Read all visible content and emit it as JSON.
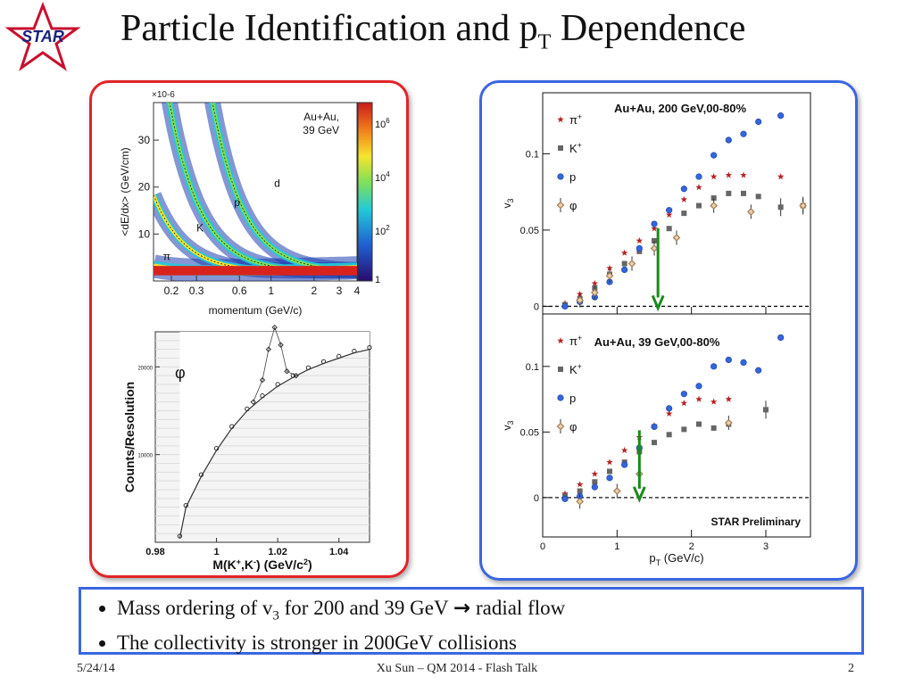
{
  "slide": {
    "title_main": "Particle Identification and p",
    "title_sub": "T",
    "title_end": " Dependence",
    "logo_text": "STAR",
    "bullets": [
      {
        "pre": "Mass ordering of v",
        "sub": "3",
        "post": " for 200 and 39 GeV ",
        "arrow": "→",
        "post2": " radial flow"
      },
      {
        "pre": "The collectivity is stronger in 200GeV collisions"
      }
    ],
    "footer": {
      "date": "5/24/14",
      "center": "Xu Sun – QM 2014 - Flash Talk",
      "page": "2"
    }
  },
  "colors": {
    "red_frame": "#e0242a",
    "blue_frame": "#3b66e0",
    "pion": "#b22222",
    "kaon": "#666666",
    "proton": "#3366dd",
    "phi": "#a67c52",
    "arrow": "#1a8a1a"
  },
  "chart_data": [
    {
      "type": "heatmap",
      "title": "",
      "annotation": "Au+Au,\n39 GeV",
      "xlabel": "momentum (GeV/c)",
      "ylabel": "<dE/dx> (GeV/cm)",
      "y_multiplier": "×10-6",
      "xticks": [
        "0.2",
        "0.3",
        "0.6",
        "1",
        "2",
        "3",
        "4"
      ],
      "yticks": [
        "10",
        "20",
        "30"
      ],
      "colorbar_ticks": [
        "1",
        "10^2",
        "10^4",
        "10^6"
      ],
      "band_labels": [
        "π",
        "K",
        "p",
        "d"
      ],
      "x_scale": "log",
      "xlim": [
        0.15,
        4
      ],
      "ylim": [
        0,
        38
      ]
    },
    {
      "type": "scatter",
      "title": "",
      "annotation": "φ",
      "xlabel": "M(K+,K-) (GeV/c2)",
      "ylabel": "Counts/Resolution",
      "xlim": [
        0.98,
        1.05
      ],
      "ylim": [
        0,
        24000
      ],
      "xticks": [
        "0.98",
        "1",
        "1.02",
        "1.04"
      ],
      "yticks": [
        "10000",
        "20000"
      ],
      "peak": {
        "x": 1.019,
        "y": 24500
      },
      "background_points": [
        [
          0.988,
          500
        ],
        [
          0.99,
          4000
        ],
        [
          0.995,
          7500
        ],
        [
          1.0,
          10500
        ],
        [
          1.005,
          13000
        ],
        [
          1.01,
          15000
        ],
        [
          1.015,
          16500
        ],
        [
          1.02,
          17800
        ],
        [
          1.025,
          18800
        ],
        [
          1.03,
          19700
        ],
        [
          1.035,
          20400
        ],
        [
          1.04,
          21000
        ],
        [
          1.045,
          21600
        ],
        [
          1.05,
          22000
        ]
      ],
      "signal_points": [
        [
          1.012,
          16000
        ],
        [
          1.015,
          18500
        ],
        [
          1.017,
          22000
        ],
        [
          1.019,
          24500
        ],
        [
          1.021,
          22500
        ],
        [
          1.023,
          19500
        ],
        [
          1.026,
          19000
        ]
      ]
    },
    {
      "type": "scatter",
      "title": "Au+Au, 200 GeV,00-80%",
      "xlabel": "",
      "ylabel": "v3",
      "xlim": [
        0,
        3.6
      ],
      "ylim": [
        -0.005,
        0.14
      ],
      "yticks": [
        "0",
        "0.05",
        "0.1"
      ],
      "arrow_x": 1.55,
      "series": [
        {
          "name": "π+",
          "points": [
            [
              0.3,
              0.002
            ],
            [
              0.5,
              0.008
            ],
            [
              0.7,
              0.015
            ],
            [
              0.9,
              0.025
            ],
            [
              1.1,
              0.035
            ],
            [
              1.3,
              0.043
            ],
            [
              1.5,
              0.051
            ],
            [
              1.7,
              0.06
            ],
            [
              1.9,
              0.07
            ],
            [
              2.1,
              0.078
            ],
            [
              2.3,
              0.085
            ],
            [
              2.5,
              0.086
            ],
            [
              2.7,
              0.086
            ],
            [
              3.2,
              0.085
            ]
          ]
        },
        {
          "name": "K+",
          "points": [
            [
              0.3,
              0.001
            ],
            [
              0.5,
              0.005
            ],
            [
              0.7,
              0.012
            ],
            [
              0.9,
              0.021
            ],
            [
              1.1,
              0.028
            ],
            [
              1.3,
              0.036
            ],
            [
              1.5,
              0.043
            ],
            [
              1.7,
              0.051
            ],
            [
              1.9,
              0.061
            ],
            [
              2.1,
              0.066
            ],
            [
              2.3,
              0.071
            ],
            [
              2.5,
              0.074
            ],
            [
              2.7,
              0.074
            ],
            [
              2.9,
              0.072
            ],
            [
              3.2,
              0.065
            ],
            [
              3.5,
              0.066
            ]
          ]
        },
        {
          "name": "p",
          "points": [
            [
              0.3,
              0.0
            ],
            [
              0.5,
              0.003
            ],
            [
              0.7,
              0.006
            ],
            [
              0.9,
              0.016
            ],
            [
              1.1,
              0.024
            ],
            [
              1.3,
              0.038
            ],
            [
              1.5,
              0.054
            ],
            [
              1.7,
              0.063
            ],
            [
              1.9,
              0.077
            ],
            [
              2.1,
              0.085
            ],
            [
              2.3,
              0.099
            ],
            [
              2.5,
              0.109
            ],
            [
              2.7,
              0.113
            ],
            [
              2.9,
              0.121
            ],
            [
              3.2,
              0.125
            ]
          ]
        },
        {
          "name": "φ",
          "points": [
            [
              0.5,
              0.004
            ],
            [
              0.7,
              0.009
            ],
            [
              0.9,
              0.02
            ],
            [
              1.2,
              0.028
            ],
            [
              1.5,
              0.038
            ],
            [
              1.8,
              0.045
            ],
            [
              2.3,
              0.066
            ],
            [
              2.8,
              0.062
            ],
            [
              3.5,
              0.066
            ]
          ]
        }
      ]
    },
    {
      "type": "scatter",
      "title": "Au+Au, 39 GeV,00-80%",
      "annotation": "STAR Preliminary",
      "xlabel": "pT (GeV/c)",
      "ylabel": "v3",
      "xlim": [
        0,
        3.6
      ],
      "ylim": [
        -0.03,
        0.14
      ],
      "xticks": [
        "0",
        "1",
        "2",
        "3"
      ],
      "yticks": [
        "0",
        "0.05",
        "0.1"
      ],
      "arrow_x": 1.3,
      "series": [
        {
          "name": "π+",
          "points": [
            [
              0.3,
              0.003
            ],
            [
              0.5,
              0.01
            ],
            [
              0.7,
              0.018
            ],
            [
              0.9,
              0.027
            ],
            [
              1.1,
              0.036
            ],
            [
              1.3,
              0.046
            ],
            [
              1.5,
              0.055
            ],
            [
              1.7,
              0.064
            ],
            [
              1.9,
              0.072
            ],
            [
              2.1,
              0.075
            ],
            [
              2.3,
              0.073
            ],
            [
              2.5,
              0.075
            ]
          ]
        },
        {
          "name": "K+",
          "points": [
            [
              0.3,
              0.001
            ],
            [
              0.5,
              0.005
            ],
            [
              0.7,
              0.012
            ],
            [
              0.9,
              0.02
            ],
            [
              1.1,
              0.027
            ],
            [
              1.3,
              0.035
            ],
            [
              1.5,
              0.042
            ],
            [
              1.7,
              0.048
            ],
            [
              1.9,
              0.052
            ],
            [
              2.1,
              0.056
            ],
            [
              2.3,
              0.053
            ],
            [
              2.5,
              0.056
            ],
            [
              3.0,
              0.067
            ]
          ]
        },
        {
          "name": "p",
          "points": [
            [
              0.3,
              -0.001
            ],
            [
              0.5,
              0.001
            ],
            [
              0.7,
              0.008
            ],
            [
              0.9,
              0.015
            ],
            [
              1.1,
              0.025
            ],
            [
              1.3,
              0.038
            ],
            [
              1.5,
              0.054
            ],
            [
              1.7,
              0.068
            ],
            [
              1.9,
              0.079
            ],
            [
              2.1,
              0.085
            ],
            [
              2.3,
              0.1
            ],
            [
              2.5,
              0.105
            ],
            [
              2.7,
              0.103
            ],
            [
              2.9,
              0.097
            ],
            [
              3.2,
              0.122
            ]
          ]
        },
        {
          "name": "φ",
          "points": [
            [
              0.5,
              -0.003
            ],
            [
              1.0,
              0.005
            ],
            [
              1.3,
              0.018
            ],
            [
              2.5,
              0.057
            ]
          ]
        }
      ]
    }
  ]
}
